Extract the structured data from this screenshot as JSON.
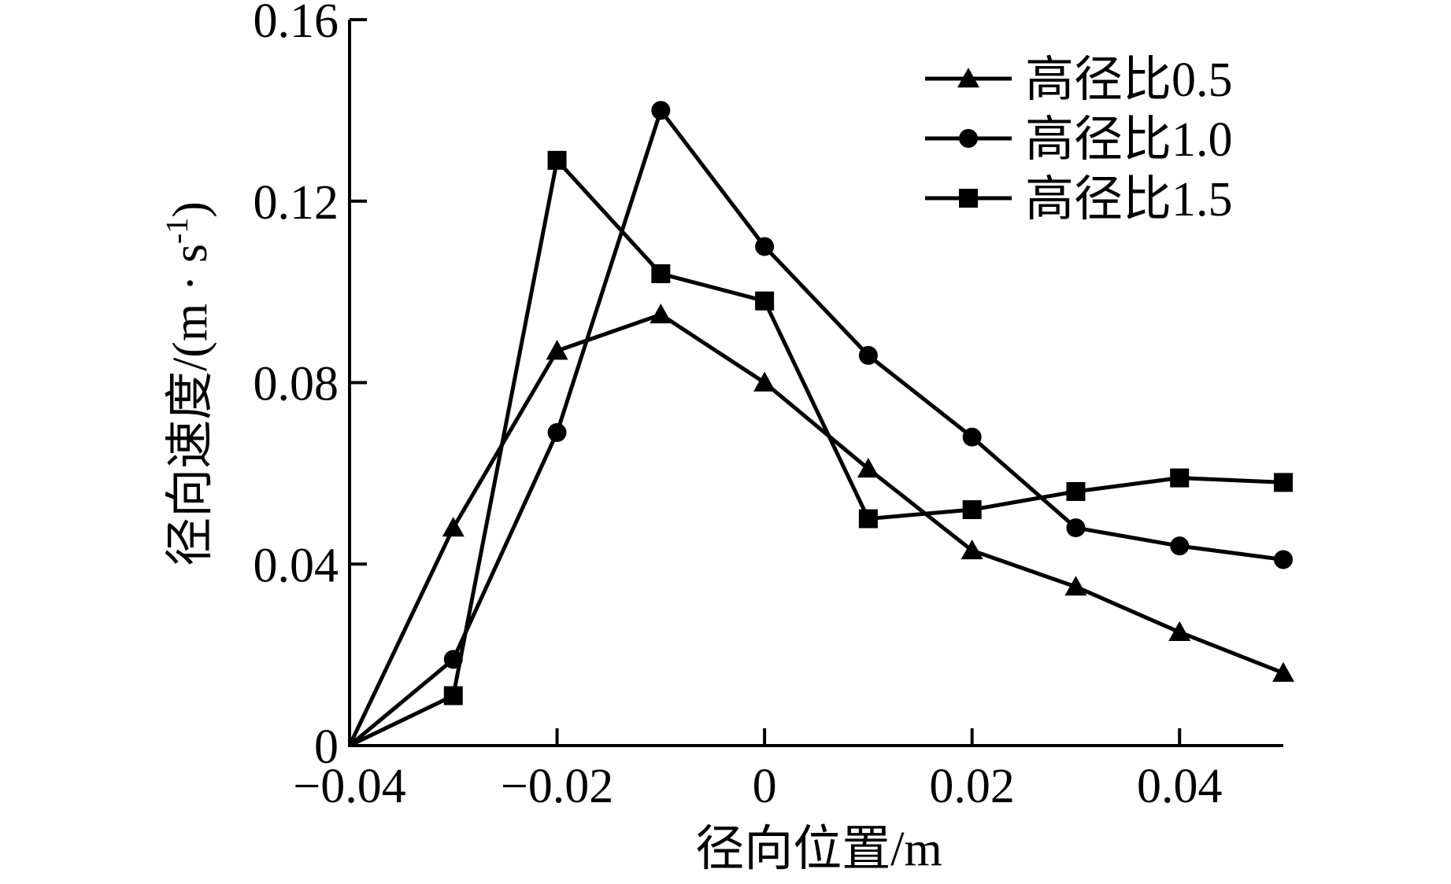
{
  "chart_data": {
    "type": "line",
    "title": "",
    "xlabel": "径向位置/m",
    "ylabel": "径向速度/(m · s",
    "ylabel_sup": "-1",
    "ylabel_close": ")",
    "xlim": [
      -0.04,
      0.05
    ],
    "ylim": [
      0,
      0.16
    ],
    "x_ticks": [
      -0.04,
      -0.02,
      0,
      0.02,
      0.04
    ],
    "x_tick_labels": [
      "−0.04",
      "−0.02",
      "0",
      "0.02",
      "0.04"
    ],
    "y_ticks": [
      0,
      0.04,
      0.08,
      0.12,
      0.16
    ],
    "y_tick_labels": [
      "0",
      "0.04",
      "0.08",
      "0.12",
      "0.16"
    ],
    "grid": false,
    "legend_position": "top-right",
    "series": [
      {
        "name": "高径比0.5",
        "marker": "triangle",
        "x": [
          -0.04,
          -0.03,
          -0.02,
          -0.01,
          0,
          0.01,
          0.02,
          0.03,
          0.04,
          0.05
        ],
        "values": [
          0,
          0.048,
          0.087,
          0.095,
          0.08,
          0.061,
          0.043,
          0.035,
          0.025,
          0.016
        ]
      },
      {
        "name": "高径比1.0",
        "marker": "circle",
        "x": [
          -0.04,
          -0.03,
          -0.02,
          -0.01,
          0,
          0.01,
          0.02,
          0.03,
          0.04,
          0.05
        ],
        "values": [
          0,
          0.019,
          0.069,
          0.14,
          0.11,
          0.086,
          0.068,
          0.048,
          0.044,
          0.041
        ]
      },
      {
        "name": "高径比1.5",
        "marker": "square",
        "x": [
          -0.04,
          -0.03,
          -0.02,
          -0.01,
          0,
          0.01,
          0.02,
          0.03,
          0.04,
          0.05
        ],
        "values": [
          0,
          0.011,
          0.129,
          0.104,
          0.098,
          0.05,
          0.052,
          0.056,
          0.059,
          0.058
        ]
      }
    ]
  }
}
